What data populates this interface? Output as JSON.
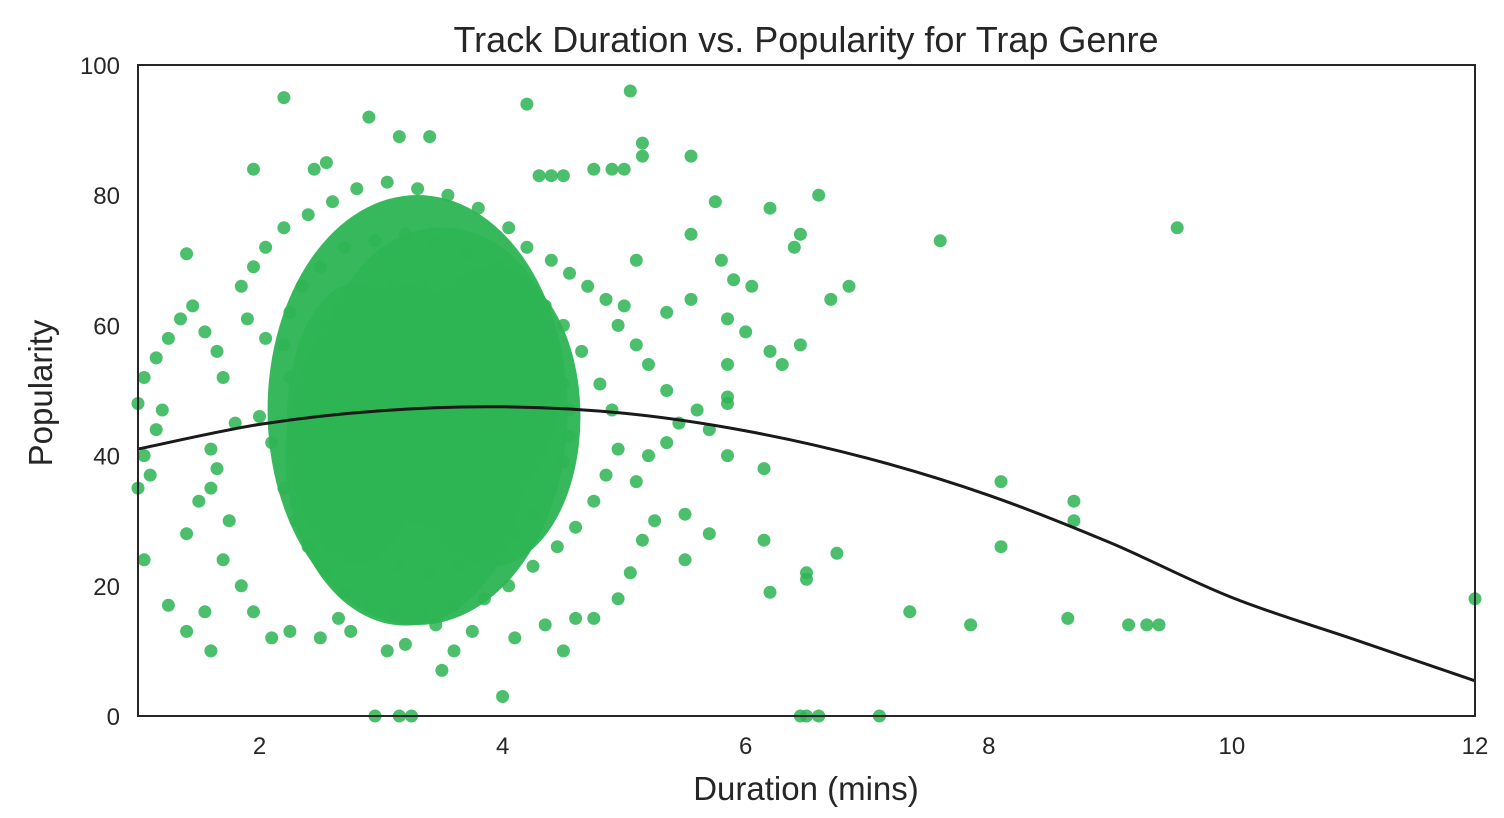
{
  "chart_data": {
    "type": "scatter",
    "title": "Track Duration vs. Popularity for Trap Genre",
    "xlabel": "Duration (mins)",
    "ylabel": "Popularity",
    "xlim": [
      1,
      12
    ],
    "ylim": [
      0,
      100
    ],
    "xticks": [
      2,
      4,
      6,
      8,
      10,
      12
    ],
    "yticks": [
      0,
      20,
      40,
      60,
      80,
      100
    ],
    "grid": false,
    "colors": {
      "points": "#2db453",
      "fit_line": "#1a1a1a",
      "axes": "#262626"
    },
    "fit_line": {
      "type": "quadratic",
      "x": [
        1,
        2,
        3,
        4,
        5,
        6,
        7,
        8,
        9,
        10,
        11,
        12
      ],
      "y": [
        41,
        44.8,
        46.9,
        47.5,
        46.5,
        43.8,
        39.6,
        33.9,
        26.6,
        18.2,
        11.8,
        5.4
      ]
    },
    "points": [
      [
        2.2,
        95
      ],
      [
        5.05,
        96
      ],
      [
        4.2,
        94
      ],
      [
        2.9,
        92
      ],
      [
        3.15,
        89
      ],
      [
        3.4,
        89
      ],
      [
        5.15,
        88
      ],
      [
        5.15,
        86
      ],
      [
        5.55,
        86
      ],
      [
        1.95,
        84
      ],
      [
        2.45,
        84
      ],
      [
        2.55,
        85
      ],
      [
        4.3,
        83
      ],
      [
        4.4,
        83
      ],
      [
        4.5,
        83
      ],
      [
        4.75,
        84
      ],
      [
        4.9,
        84
      ],
      [
        5.0,
        84
      ],
      [
        6.6,
        80
      ],
      [
        5.75,
        79
      ],
      [
        6.2,
        78
      ],
      [
        9.55,
        75
      ],
      [
        6.45,
        74
      ],
      [
        5.55,
        74
      ],
      [
        7.6,
        73
      ],
      [
        1.4,
        71
      ],
      [
        6.4,
        72
      ],
      [
        5.1,
        70
      ],
      [
        5.8,
        70
      ],
      [
        5.9,
        67
      ],
      [
        6.05,
        66
      ],
      [
        6.85,
        66
      ],
      [
        6.7,
        64
      ],
      [
        5.0,
        63
      ],
      [
        5.35,
        62
      ],
      [
        5.55,
        64
      ],
      [
        5.85,
        61
      ],
      [
        6.0,
        59
      ],
      [
        6.2,
        56
      ],
      [
        6.45,
        57
      ],
      [
        6.3,
        54
      ],
      [
        5.85,
        54
      ],
      [
        5.85,
        49
      ],
      [
        5.85,
        48
      ],
      [
        5.6,
        47
      ],
      [
        5.7,
        44
      ],
      [
        5.85,
        40
      ],
      [
        6.15,
        38
      ],
      [
        6.15,
        27
      ],
      [
        6.2,
        19
      ],
      [
        6.5,
        22
      ],
      [
        6.5,
        21
      ],
      [
        6.75,
        25
      ],
      [
        5.7,
        28
      ],
      [
        5.5,
        31
      ],
      [
        5.5,
        24
      ],
      [
        8.1,
        36
      ],
      [
        8.1,
        26
      ],
      [
        8.7,
        33
      ],
      [
        8.7,
        30
      ],
      [
        7.35,
        16
      ],
      [
        7.85,
        14
      ],
      [
        8.65,
        15
      ],
      [
        9.15,
        14
      ],
      [
        9.3,
        14
      ],
      [
        9.4,
        14
      ],
      [
        12.0,
        18
      ],
      [
        6.45,
        0
      ],
      [
        6.5,
        0
      ],
      [
        6.6,
        0
      ],
      [
        7.1,
        0
      ],
      [
        2.95,
        0
      ],
      [
        3.15,
        0
      ],
      [
        3.25,
        0
      ],
      [
        4.0,
        3
      ],
      [
        3.5,
        7
      ],
      [
        3.05,
        10
      ],
      [
        3.2,
        11
      ],
      [
        3.6,
        10
      ],
      [
        1.6,
        10
      ],
      [
        1.05,
        24
      ],
      [
        1.25,
        17
      ],
      [
        1.4,
        13
      ],
      [
        1.55,
        16
      ],
      [
        1.0,
        35
      ],
      [
        1.1,
        37
      ],
      [
        1.05,
        40
      ],
      [
        1.15,
        44
      ],
      [
        1.2,
        47
      ],
      [
        1.05,
        52
      ],
      [
        1.15,
        55
      ],
      [
        1.25,
        58
      ],
      [
        1.0,
        48
      ],
      [
        1.35,
        61
      ],
      [
        1.45,
        63
      ],
      [
        1.55,
        59
      ],
      [
        1.65,
        56
      ],
      [
        1.7,
        52
      ],
      [
        1.8,
        45
      ],
      [
        1.6,
        41
      ],
      [
        1.65,
        38
      ],
      [
        1.6,
        35
      ],
      [
        1.75,
        30
      ],
      [
        1.5,
        33
      ],
      [
        1.4,
        28
      ],
      [
        1.7,
        24
      ],
      [
        1.85,
        20
      ],
      [
        1.95,
        16
      ],
      [
        2.1,
        12
      ],
      [
        2.25,
        13
      ],
      [
        2.5,
        12
      ],
      [
        2.65,
        15
      ],
      [
        2.75,
        13
      ],
      [
        3.45,
        14
      ],
      [
        3.75,
        13
      ],
      [
        4.1,
        12
      ],
      [
        4.35,
        14
      ],
      [
        4.5,
        10
      ],
      [
        4.6,
        15
      ],
      [
        4.75,
        15
      ],
      [
        4.95,
        18
      ],
      [
        5.05,
        22
      ],
      [
        5.15,
        27
      ],
      [
        5.25,
        30
      ],
      [
        5.1,
        36
      ],
      [
        5.2,
        40
      ],
      [
        5.35,
        42
      ],
      [
        5.45,
        45
      ],
      [
        5.35,
        50
      ],
      [
        5.2,
        54
      ],
      [
        5.1,
        57
      ],
      [
        4.95,
        60
      ],
      [
        4.85,
        64
      ],
      [
        4.7,
        66
      ],
      [
        4.55,
        68
      ],
      [
        4.4,
        70
      ],
      [
        4.2,
        72
      ],
      [
        4.05,
        75
      ],
      [
        3.8,
        78
      ],
      [
        3.55,
        80
      ],
      [
        3.3,
        81
      ],
      [
        3.05,
        82
      ],
      [
        2.8,
        81
      ],
      [
        2.6,
        79
      ],
      [
        2.4,
        77
      ],
      [
        2.2,
        75
      ],
      [
        2.05,
        72
      ],
      [
        1.95,
        69
      ],
      [
        1.85,
        66
      ],
      [
        1.9,
        61
      ],
      [
        2.05,
        58
      ],
      [
        2.0,
        46
      ],
      [
        2.1,
        42
      ],
      [
        2.2,
        35
      ],
      [
        2.3,
        30
      ],
      [
        2.4,
        26
      ],
      [
        2.55,
        22
      ],
      [
        2.7,
        19
      ],
      [
        2.9,
        17
      ],
      [
        3.1,
        16
      ],
      [
        3.35,
        16
      ],
      [
        3.6,
        17
      ],
      [
        3.85,
        18
      ],
      [
        4.05,
        20
      ],
      [
        4.25,
        23
      ],
      [
        4.45,
        26
      ],
      [
        4.6,
        29
      ],
      [
        4.75,
        33
      ],
      [
        4.85,
        37
      ],
      [
        4.95,
        41
      ],
      [
        4.9,
        47
      ],
      [
        4.8,
        51
      ],
      [
        4.65,
        56
      ],
      [
        4.5,
        60
      ],
      [
        4.35,
        63
      ],
      [
        4.15,
        66
      ],
      [
        3.95,
        69
      ],
      [
        3.7,
        71
      ],
      [
        3.45,
        73
      ],
      [
        3.2,
        74
      ],
      [
        2.95,
        73
      ],
      [
        2.7,
        72
      ],
      [
        2.5,
        69
      ],
      [
        2.35,
        66
      ],
      [
        2.25,
        62
      ],
      [
        2.2,
        57
      ],
      [
        2.25,
        52
      ],
      [
        2.3,
        48
      ],
      [
        2.4,
        44
      ],
      [
        2.45,
        40
      ],
      [
        2.55,
        36
      ],
      [
        2.65,
        32
      ],
      [
        2.8,
        28
      ],
      [
        2.95,
        25
      ],
      [
        3.15,
        23
      ],
      [
        3.4,
        22
      ],
      [
        3.65,
        23
      ],
      [
        3.9,
        25
      ],
      [
        4.1,
        28
      ],
      [
        4.25,
        31
      ],
      [
        4.4,
        35
      ],
      [
        4.5,
        39
      ],
      [
        4.55,
        43
      ],
      [
        4.55,
        47
      ],
      [
        4.5,
        51
      ],
      [
        4.4,
        55
      ],
      [
        4.25,
        58
      ],
      [
        4.05,
        61
      ],
      [
        3.85,
        63
      ],
      [
        3.6,
        65
      ],
      [
        3.35,
        66
      ],
      [
        3.1,
        66
      ],
      [
        2.85,
        65
      ],
      [
        2.65,
        63
      ],
      [
        2.55,
        60
      ],
      [
        2.5,
        56
      ],
      [
        2.55,
        52
      ],
      [
        2.6,
        48
      ],
      [
        2.7,
        44
      ],
      [
        2.8,
        40
      ],
      [
        2.95,
        36
      ],
      [
        3.15,
        33
      ],
      [
        3.4,
        31
      ],
      [
        3.65,
        31
      ],
      [
        3.9,
        33
      ],
      [
        4.05,
        36
      ],
      [
        4.15,
        40
      ],
      [
        4.2,
        44
      ],
      [
        4.15,
        48
      ],
      [
        4.05,
        52
      ],
      [
        3.9,
        55
      ],
      [
        3.7,
        57
      ],
      [
        3.45,
        58
      ],
      [
        3.2,
        58
      ],
      [
        2.95,
        57
      ],
      [
        2.8,
        54
      ],
      [
        2.75,
        50
      ],
      [
        2.85,
        46
      ],
      [
        3.0,
        43
      ],
      [
        3.2,
        40
      ],
      [
        3.45,
        39
      ],
      [
        3.7,
        40
      ],
      [
        3.85,
        43
      ],
      [
        3.9,
        47
      ],
      [
        3.8,
        50
      ],
      [
        3.6,
        52
      ],
      [
        3.35,
        52
      ],
      [
        3.15,
        50
      ],
      [
        3.05,
        47
      ],
      [
        3.25,
        45
      ],
      [
        3.5,
        45
      ],
      [
        3.6,
        48
      ],
      [
        3.3,
        48
      ]
    ]
  }
}
